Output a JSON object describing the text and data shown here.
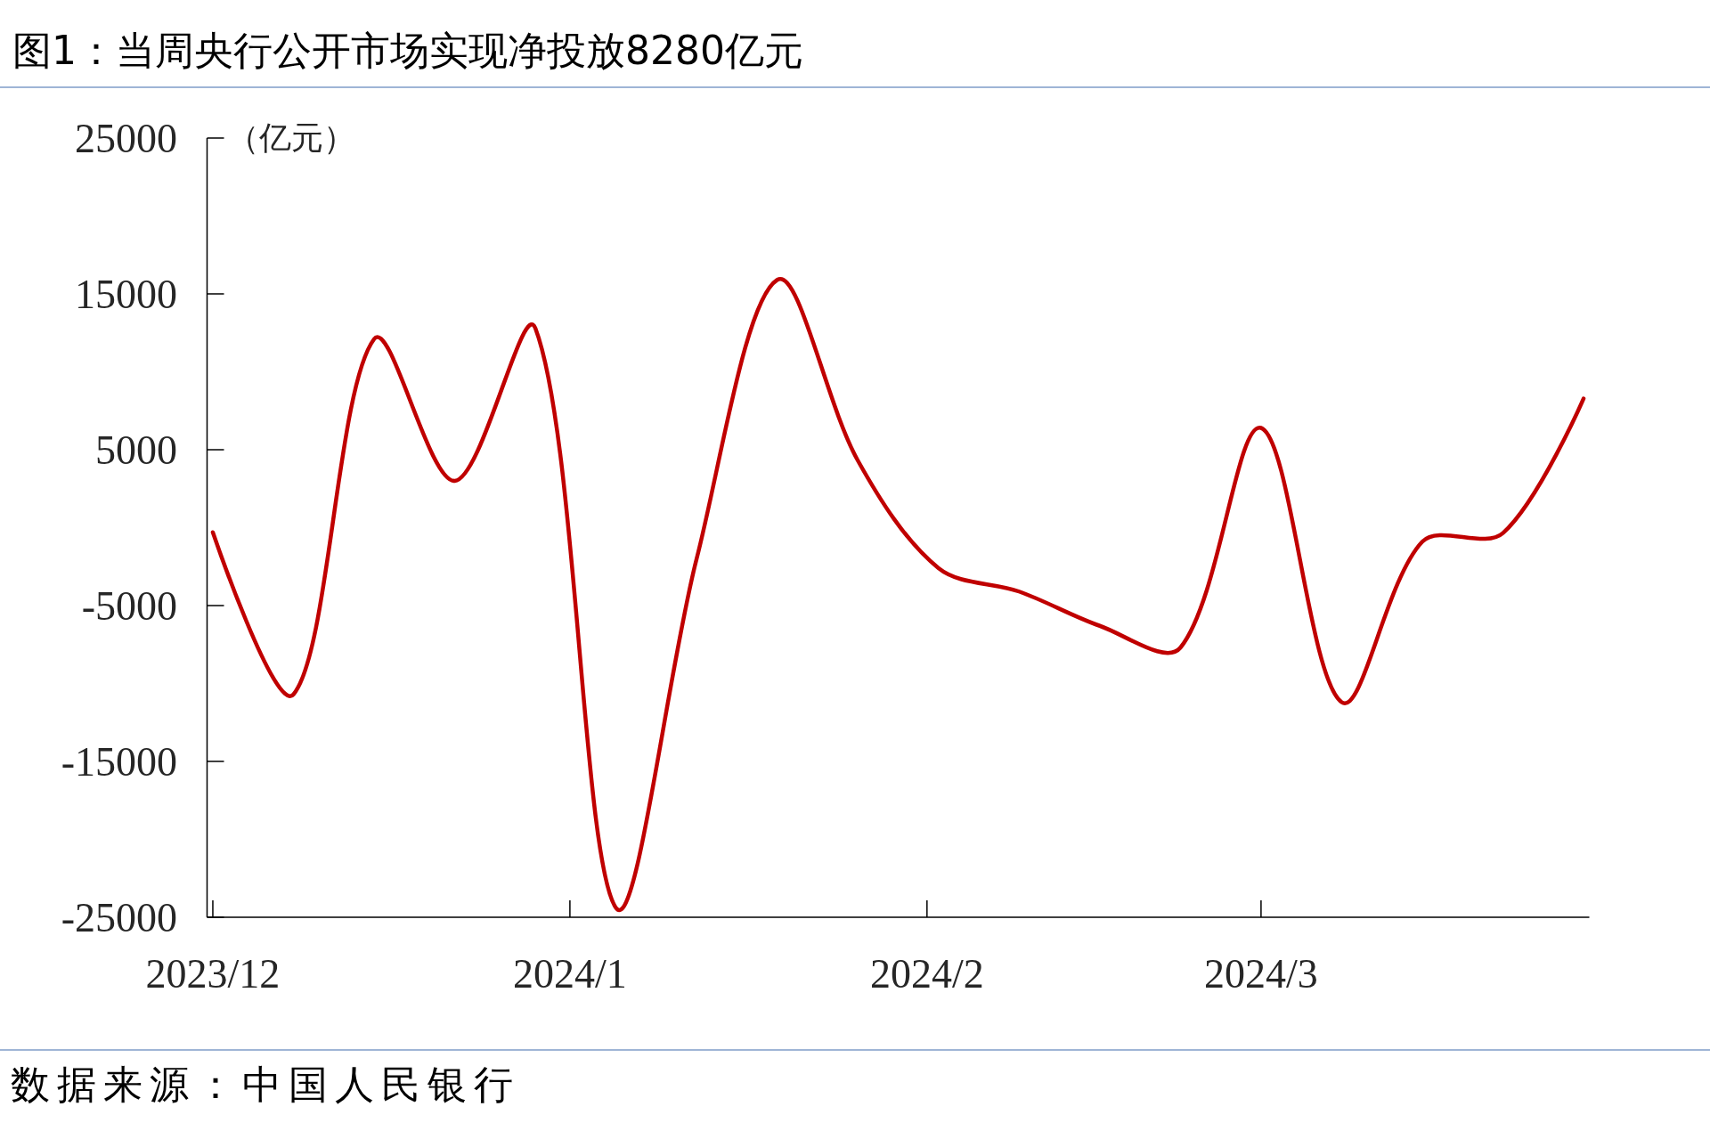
{
  "chart_data": {
    "type": "line",
    "title": "图1：当周央行公开市场实现净投放8280亿元",
    "ylabel": "（亿元）",
    "annotations": [
      "数据来源：中国人民银行"
    ],
    "x": [
      "2023-12-01",
      "2023-12-08",
      "2023-12-15",
      "2023-12-22",
      "2023-12-29",
      "2024-01-05",
      "2024-01-12",
      "2024-01-19",
      "2024-01-26",
      "2024-02-02",
      "2024-02-09",
      "2024-02-16",
      "2024-02-23",
      "2024-03-01",
      "2024-03-08",
      "2024-03-15",
      "2024-03-22",
      "2024-03-29"
    ],
    "series": [
      {
        "color": "#c00000",
        "values": [
          -300,
          -10700,
          12100,
          3000,
          12800,
          -24400,
          -2000,
          15900,
          4300,
          -2600,
          -4100,
          -6300,
          -7700,
          6400,
          -11200,
          -900,
          -350,
          8280
        ]
      }
    ],
    "xlim": [
      "2023-11-30T12:00",
      "2024-03-29T12:00"
    ],
    "xticks": [
      {
        "value": "2023-12-01",
        "label": "2023/12"
      },
      {
        "value": "2024-01-01",
        "label": "2024/1"
      },
      {
        "value": "2024-02-01",
        "label": "2024/2"
      },
      {
        "value": "2024-03-01",
        "label": "2024/3"
      }
    ],
    "ylim": [
      -25000,
      25000
    ],
    "yticks": [
      -25000,
      -15000,
      -5000,
      5000,
      15000,
      25000
    ]
  }
}
